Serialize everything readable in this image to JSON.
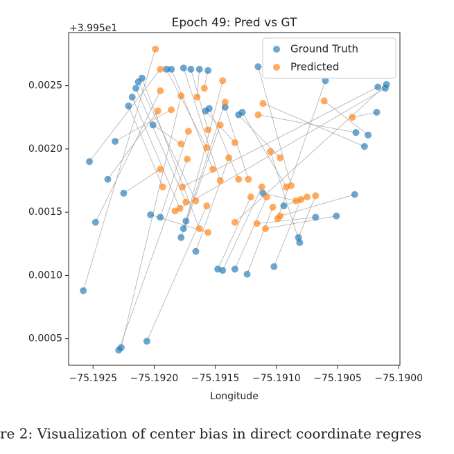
{
  "chart_data": {
    "type": "scatter",
    "title": "Epoch 49: Pred vs GT",
    "xlabel": "Longitude",
    "y_offset_label": "+3.995e1",
    "xlim": [
      -75.1927,
      -75.18999
    ],
    "ylim": [
      0.00029,
      0.00292
    ],
    "xticks": [
      {
        "value": -75.1925,
        "label": "−75.1925"
      },
      {
        "value": -75.192,
        "label": "−75.1920"
      },
      {
        "value": -75.1915,
        "label": "−75.1915"
      },
      {
        "value": -75.191,
        "label": "−75.1910"
      },
      {
        "value": -75.1905,
        "label": "−75.1905"
      },
      {
        "value": -75.19,
        "label": "−75.1900"
      }
    ],
    "yticks": [
      0.0005,
      {
        "value": 0.001,
        "label": "0.0010"
      },
      0.0015,
      {
        "value": 0.002,
        "label": "0.0020"
      },
      0.0025
    ],
    "legend": "upper right",
    "connect_pairs": true,
    "pair_line_color": "#999999",
    "series": [
      {
        "name": "Ground Truth",
        "color": "#1f77b4",
        "x": [
          -75.19258,
          -75.19253,
          -75.19248,
          -75.19238,
          -75.19232,
          -75.19227,
          -75.19229,
          -75.19225,
          -75.19221,
          -75.19218,
          -75.19215,
          -75.19213,
          -75.1921,
          -75.19206,
          -75.19203,
          -75.19201,
          -75.19195,
          -75.1919,
          -75.19186,
          -75.19176,
          -75.1917,
          -75.19163,
          -75.19156,
          -75.19174,
          -75.19176,
          -75.19178,
          -75.19166,
          -75.19158,
          -75.19155,
          -75.19142,
          -75.19148,
          -75.19144,
          -75.19134,
          -75.19124,
          -75.19131,
          -75.19128,
          -75.19115,
          -75.19111,
          -75.19102,
          -75.19094,
          -75.19082,
          -75.19081,
          -75.19068,
          -75.19051,
          -75.1906,
          -75.19036,
          -75.19035,
          -75.19028,
          -75.19025,
          -75.19018,
          -75.19017,
          -75.19011,
          -75.1901
        ],
        "values": [
          0.00088,
          0.0019,
          0.00142,
          0.00176,
          0.00206,
          0.00043,
          0.00041,
          0.00165,
          0.00234,
          0.00241,
          0.00248,
          0.00253,
          0.00256,
          0.00048,
          0.00148,
          0.00219,
          0.00146,
          0.00263,
          0.00263,
          0.00264,
          0.00263,
          0.00263,
          0.00262,
          0.00143,
          0.00137,
          0.0013,
          0.00119,
          0.0023,
          0.00232,
          0.00233,
          0.00105,
          0.00104,
          0.00105,
          0.00101,
          0.00227,
          0.00229,
          0.00265,
          0.00165,
          0.00107,
          0.00155,
          0.0013,
          0.00126,
          0.00146,
          0.00147,
          0.00254,
          0.00164,
          0.00213,
          0.00202,
          0.00211,
          0.00229,
          0.00249,
          0.00248,
          0.00251
        ]
      },
      {
        "name": "Predicted",
        "color": "#ff7f0e",
        "x": [
          -75.19199,
          -75.19195,
          -75.19195,
          -75.19197,
          -75.19186,
          -75.19178,
          -75.19173,
          -75.19195,
          -75.19193,
          -75.19179,
          -75.19174,
          -75.19166,
          -75.19163,
          -75.19157,
          -75.19156,
          -75.19178,
          -75.19172,
          -75.19157,
          -75.19152,
          -75.19146,
          -75.19156,
          -75.19165,
          -75.19159,
          -75.19144,
          -75.19142,
          -75.19146,
          -75.19139,
          -75.19134,
          -75.19131,
          -75.19123,
          -75.19121,
          -75.19112,
          -75.19108,
          -75.19103,
          -75.19097,
          -75.19092,
          -75.19088,
          -75.19084,
          -75.1908,
          -75.19075,
          -75.19068,
          -75.19105,
          -75.19116,
          -75.19109,
          -75.19099,
          -75.19097,
          -75.19115,
          -75.19111,
          -75.19061,
          -75.19038,
          -75.19177,
          -75.19183,
          -75.19134
        ],
        "values": [
          0.00279,
          0.00263,
          0.00246,
          0.0023,
          0.00231,
          0.00242,
          0.00192,
          0.00184,
          0.0017,
          0.00153,
          0.00158,
          0.00159,
          0.00137,
          0.00155,
          0.00134,
          0.00204,
          0.00214,
          0.00201,
          0.00184,
          0.00175,
          0.00215,
          0.00241,
          0.00248,
          0.00254,
          0.00237,
          0.00219,
          0.00193,
          0.00205,
          0.00176,
          0.00176,
          0.00162,
          0.0017,
          0.00162,
          0.00154,
          0.00193,
          0.0017,
          0.00171,
          0.00159,
          0.0016,
          0.00162,
          0.00163,
          0.00198,
          0.00141,
          0.00137,
          0.00145,
          0.00147,
          0.00227,
          0.00236,
          0.00238,
          0.00225,
          0.0017,
          0.00151,
          0.00142
        ]
      }
    ]
  },
  "caption": "re 2: Visualization of center bias in direct coordinate regres"
}
